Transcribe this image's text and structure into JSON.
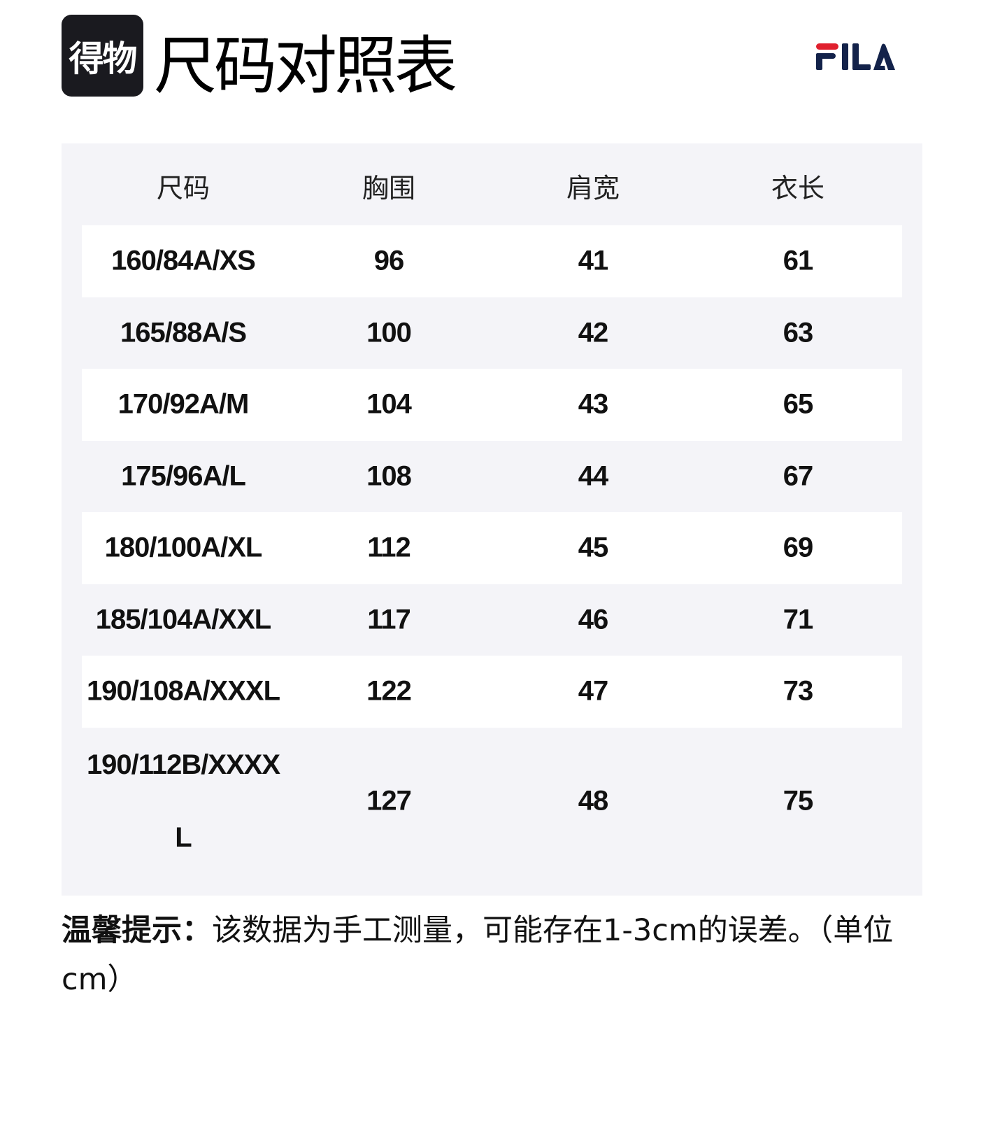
{
  "header": {
    "app_logo_text": "得物",
    "title": "尺码对照表",
    "brand_logo": "FILA",
    "brand_colors": {
      "red": "#e0202e",
      "navy": "#13224a"
    }
  },
  "table": {
    "columns": [
      "尺码",
      "胸围",
      "肩宽",
      "衣长"
    ],
    "rows": [
      [
        "160/84A/XS",
        "96",
        "41",
        "61"
      ],
      [
        "165/88A/S",
        "100",
        "42",
        "63"
      ],
      [
        "170/92A/M",
        "104",
        "43",
        "65"
      ],
      [
        "175/96A/L",
        "108",
        "44",
        "67"
      ],
      [
        "180/100A/XL",
        "112",
        "45",
        "69"
      ],
      [
        "185/104A/XXL",
        "117",
        "46",
        "71"
      ],
      [
        "190/108A/XXXL",
        "122",
        "47",
        "73"
      ],
      [
        "190/112B/XXXXL",
        "127",
        "48",
        "75"
      ]
    ]
  },
  "note": {
    "label": "温馨提示：",
    "text": "该数据为手工测量，可能存在1-3cm的误差。（单位cm）"
  }
}
